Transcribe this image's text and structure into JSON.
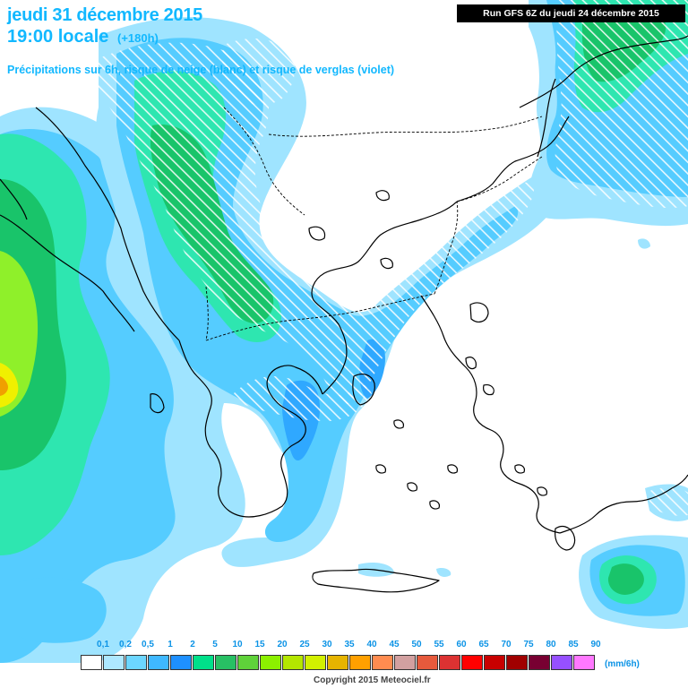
{
  "header": {
    "date": "jeudi 31 décembre 2015",
    "time": "19:00 locale",
    "step": "(+180h)",
    "subtitle": "Précipitations sur 6h, risque de neige (blanc) et risque de verglas (violet)"
  },
  "run_info": "Run GFS 6Z du jeudi 24 décembre 2015",
  "legend": {
    "unit": "(mm/6h)",
    "ticks": [
      "0,1",
      "0,2",
      "0,5",
      "1",
      "2",
      "5",
      "10",
      "15",
      "20",
      "25",
      "30",
      "35",
      "40",
      "45",
      "50",
      "55",
      "60",
      "65",
      "70",
      "75",
      "80",
      "85",
      "90"
    ],
    "colors": [
      "#ffffff",
      "#aee8ff",
      "#6cd6ff",
      "#3fb8ff",
      "#1e90ff",
      "#00e08a",
      "#28c064",
      "#5fd23a",
      "#8cf000",
      "#b4e600",
      "#d2f000",
      "#e6b400",
      "#ffa000",
      "#ff8c50",
      "#d2a0a0",
      "#e65a3c",
      "#dc3232",
      "#ff0000",
      "#c80000",
      "#a00000",
      "#780032",
      "#9650ff",
      "#ff78ff"
    ]
  },
  "copyright": "Copyright 2015 Meteociel.fr",
  "map_colors": {
    "light_blue": "#9fe4ff",
    "sky": "#55ccff",
    "blue": "#2fa8ff",
    "teal": "#2ee6b0",
    "green": "#19c46a",
    "mid_green": "#4bd24b",
    "lime": "#8ff02a",
    "yellow": "#f0f000",
    "orange": "#f0a000",
    "snow_hatch": "#ffffff",
    "coast": "#000000",
    "border": "#000000"
  }
}
